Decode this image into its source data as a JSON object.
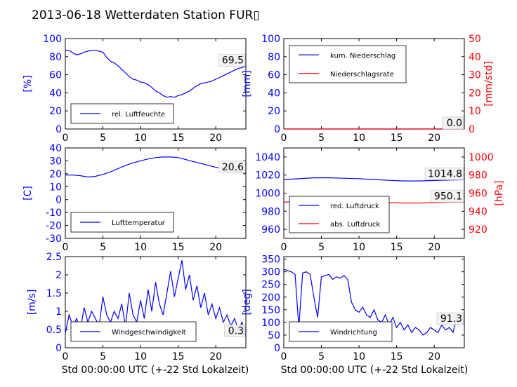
{
  "title": "2013-06-18 Wetterdaten Station FUR▯",
  "colors": {
    "blue": "#0000ff",
    "red": "#ff0000",
    "black": "#000000"
  },
  "chart_data": [
    {
      "type": "line",
      "ylabel": "[%]",
      "xlim": [
        0,
        24
      ],
      "ylim": [
        0,
        100
      ],
      "xticks": [
        0,
        5,
        10,
        15,
        20
      ],
      "yticks": [
        0,
        20,
        40,
        60,
        80,
        100
      ],
      "last_value_label": "69.5",
      "legend_position": "lower-left",
      "series": [
        {
          "name": "rel. Luftfeuchte",
          "color": "#0000ff",
          "x": [
            0,
            0.5,
            1,
            1.5,
            2,
            2.5,
            3,
            3.5,
            4,
            4.5,
            5,
            5.5,
            6,
            6.5,
            7,
            7.5,
            8,
            8.5,
            9,
            9.5,
            10,
            10.5,
            11,
            11.5,
            12,
            12.5,
            13,
            13.5,
            14,
            14.5,
            15,
            15.5,
            16,
            16.5,
            17,
            17.5,
            18,
            18.5,
            19,
            19.5,
            20,
            20.5,
            21,
            21.5,
            22,
            22.5,
            23,
            23.5,
            24
          ],
          "y": [
            87,
            87,
            84,
            82,
            83,
            85,
            86,
            87,
            87,
            86,
            85,
            79,
            75,
            73,
            70,
            66,
            62,
            58,
            55,
            54,
            52,
            51,
            49,
            46,
            42,
            40,
            37,
            35,
            36,
            35,
            37,
            38,
            40,
            42,
            45,
            48,
            50,
            51,
            52,
            53,
            55,
            57,
            59,
            61,
            63,
            65,
            67,
            68,
            69.5
          ]
        }
      ]
    },
    {
      "type": "line",
      "ylabel": "[mm]",
      "y2label": "[mm/std]",
      "xlim": [
        0,
        24
      ],
      "ylim": [
        0,
        100
      ],
      "y2lim": [
        0,
        50
      ],
      "xticks": [
        0,
        5,
        10,
        15,
        20
      ],
      "yticks": [
        0,
        20,
        40,
        60,
        80,
        100
      ],
      "y2ticks": [
        0,
        10,
        20,
        30,
        40,
        50
      ],
      "last_value_labels": [
        "0.0",
        "0.0"
      ],
      "legend_position": "upper-left",
      "series": [
        {
          "name": "kum. Niederschlag",
          "color": "#0000ff",
          "axis": "left",
          "x": [
            0,
            24
          ],
          "y": [
            0,
            0
          ]
        },
        {
          "name": "Niederschlagsrate",
          "color": "#ff0000",
          "axis": "right",
          "x": [
            0,
            24
          ],
          "y": [
            0,
            0
          ]
        }
      ]
    },
    {
      "type": "line",
      "ylabel": "[C]",
      "xlim": [
        0,
        24
      ],
      "ylim": [
        -30,
        40
      ],
      "xticks": [
        0,
        5,
        10,
        15,
        20
      ],
      "yticks": [
        -30,
        -20,
        -10,
        0,
        10,
        20,
        30,
        40
      ],
      "last_value_label": "20.6",
      "legend_position": "lower-left",
      "series": [
        {
          "name": "Lufttemperatur",
          "color": "#0000ff",
          "x": [
            0,
            1,
            2,
            3,
            4,
            5,
            6,
            7,
            8,
            9,
            10,
            11,
            12,
            13,
            14,
            15,
            16,
            17,
            18,
            19,
            20,
            21,
            22,
            23,
            24
          ],
          "y": [
            19,
            19,
            18.5,
            17.5,
            18,
            19.5,
            21.5,
            24,
            26.5,
            28.5,
            30,
            31.5,
            32.5,
            33,
            33,
            32.5,
            31,
            29.5,
            28,
            26.5,
            25,
            24,
            23,
            22,
            20.6
          ]
        }
      ]
    },
    {
      "type": "line",
      "ylabel": "[hPa]",
      "xlim": [
        0,
        24
      ],
      "ylim": [
        950,
        1050
      ],
      "y2lim": [
        910,
        1010
      ],
      "xticks": [
        0,
        5,
        10,
        15,
        20
      ],
      "yticks": [
        960,
        980,
        1000,
        1020,
        1040
      ],
      "y2ticks": [
        920,
        940,
        960,
        980,
        1000
      ],
      "last_value_labels": [
        "1014.8",
        "950.1"
      ],
      "legend_position": "lower-left",
      "series": [
        {
          "name": "red. Luftdruck",
          "color": "#0000ff",
          "axis": "left",
          "x": [
            0,
            2,
            4,
            6,
            8,
            10,
            12,
            14,
            16,
            18,
            20,
            22,
            24
          ],
          "y": [
            1015,
            1016,
            1017,
            1017,
            1016.5,
            1016,
            1015,
            1014.2,
            1013.5,
            1013.5,
            1014,
            1014.5,
            1014.8
          ]
        },
        {
          "name": "abs. Luftdruck",
          "color": "#ff0000",
          "axis": "right",
          "x": [
            0,
            2,
            4,
            6,
            8,
            10,
            12,
            14,
            16,
            18,
            20,
            22,
            24
          ],
          "y": [
            950,
            951,
            952,
            952.5,
            952,
            951.5,
            950.5,
            949.5,
            949,
            949,
            949.5,
            950,
            950.1
          ]
        }
      ]
    },
    {
      "type": "line",
      "ylabel": "[m/s]",
      "xlim": [
        0,
        24
      ],
      "ylim": [
        0,
        2.5
      ],
      "xticks": [
        0,
        5,
        10,
        15,
        20
      ],
      "yticks": [
        0.0,
        0.5,
        1.0,
        1.5,
        2.0,
        2.5
      ],
      "last_value_label": "0.3",
      "legend_position": "lower-left",
      "series": [
        {
          "name": "Windgeschwindigkeit",
          "color": "#0000ff",
          "x": [
            0,
            0.5,
            1,
            1.5,
            2,
            2.5,
            3,
            3.5,
            4,
            4.5,
            5,
            5.5,
            6,
            6.5,
            7,
            7.5,
            8,
            8.5,
            9,
            9.5,
            10,
            10.5,
            11,
            11.5,
            12,
            12.5,
            13,
            13.5,
            14,
            14.5,
            15,
            15.5,
            16,
            16.5,
            17,
            17.5,
            18,
            18.5,
            19,
            19.5,
            20,
            20.5,
            21,
            21.5,
            22,
            22.5,
            23,
            23.5,
            24
          ],
          "y": [
            0.4,
            0.9,
            0.6,
            0.8,
            0.5,
            1.1,
            0.7,
            1.0,
            0.8,
            0.6,
            1.4,
            0.9,
            0.7,
            1.0,
            0.8,
            1.2,
            0.6,
            1.5,
            0.9,
            0.7,
            1.3,
            0.8,
            1.6,
            1.0,
            1.8,
            1.2,
            0.9,
            1.5,
            2.1,
            1.4,
            1.9,
            2.4,
            1.6,
            2.0,
            1.3,
            1.7,
            1.1,
            1.5,
            0.9,
            1.2,
            0.8,
            1.1,
            0.7,
            0.9,
            0.6,
            0.8,
            0.5,
            0.7,
            0.3
          ]
        }
      ]
    },
    {
      "type": "line",
      "ylabel": "[deg]",
      "xlim": [
        0,
        24
      ],
      "ylim": [
        0,
        360
      ],
      "xticks": [
        0,
        5,
        10,
        15,
        20
      ],
      "yticks": [
        0,
        50,
        100,
        150,
        200,
        250,
        300,
        350
      ],
      "last_value_label": "91.3",
      "legend_position": "lower-left",
      "series": [
        {
          "name": "Windrichtung",
          "color": "#0000ff",
          "x": [
            0,
            0.5,
            1,
            1.5,
            2,
            2.5,
            3,
            3.5,
            4,
            4.5,
            5,
            5.5,
            6,
            6.5,
            7,
            7.5,
            8,
            8.5,
            9,
            9.5,
            10,
            10.5,
            11,
            11.5,
            12,
            12.5,
            13,
            13.5,
            14,
            14.5,
            15,
            15.5,
            16,
            16.5,
            17,
            17.5,
            18,
            18.5,
            19,
            19.5,
            20,
            20.5,
            21,
            21.5,
            22,
            22.5,
            23,
            23.5,
            24
          ],
          "y": [
            310,
            305,
            300,
            290,
            80,
            295,
            300,
            290,
            200,
            120,
            280,
            285,
            290,
            270,
            280,
            275,
            285,
            270,
            180,
            150,
            140,
            160,
            130,
            120,
            150,
            110,
            100,
            130,
            90,
            120,
            80,
            100,
            70,
            90,
            60,
            80,
            70,
            50,
            60,
            80,
            70,
            60,
            90,
            70,
            80,
            60,
            120,
            100,
            91.3
          ]
        }
      ]
    }
  ],
  "xlabel_bottom": "Std 00:00:00 UTC (+-22 Std Lokalzeit)"
}
